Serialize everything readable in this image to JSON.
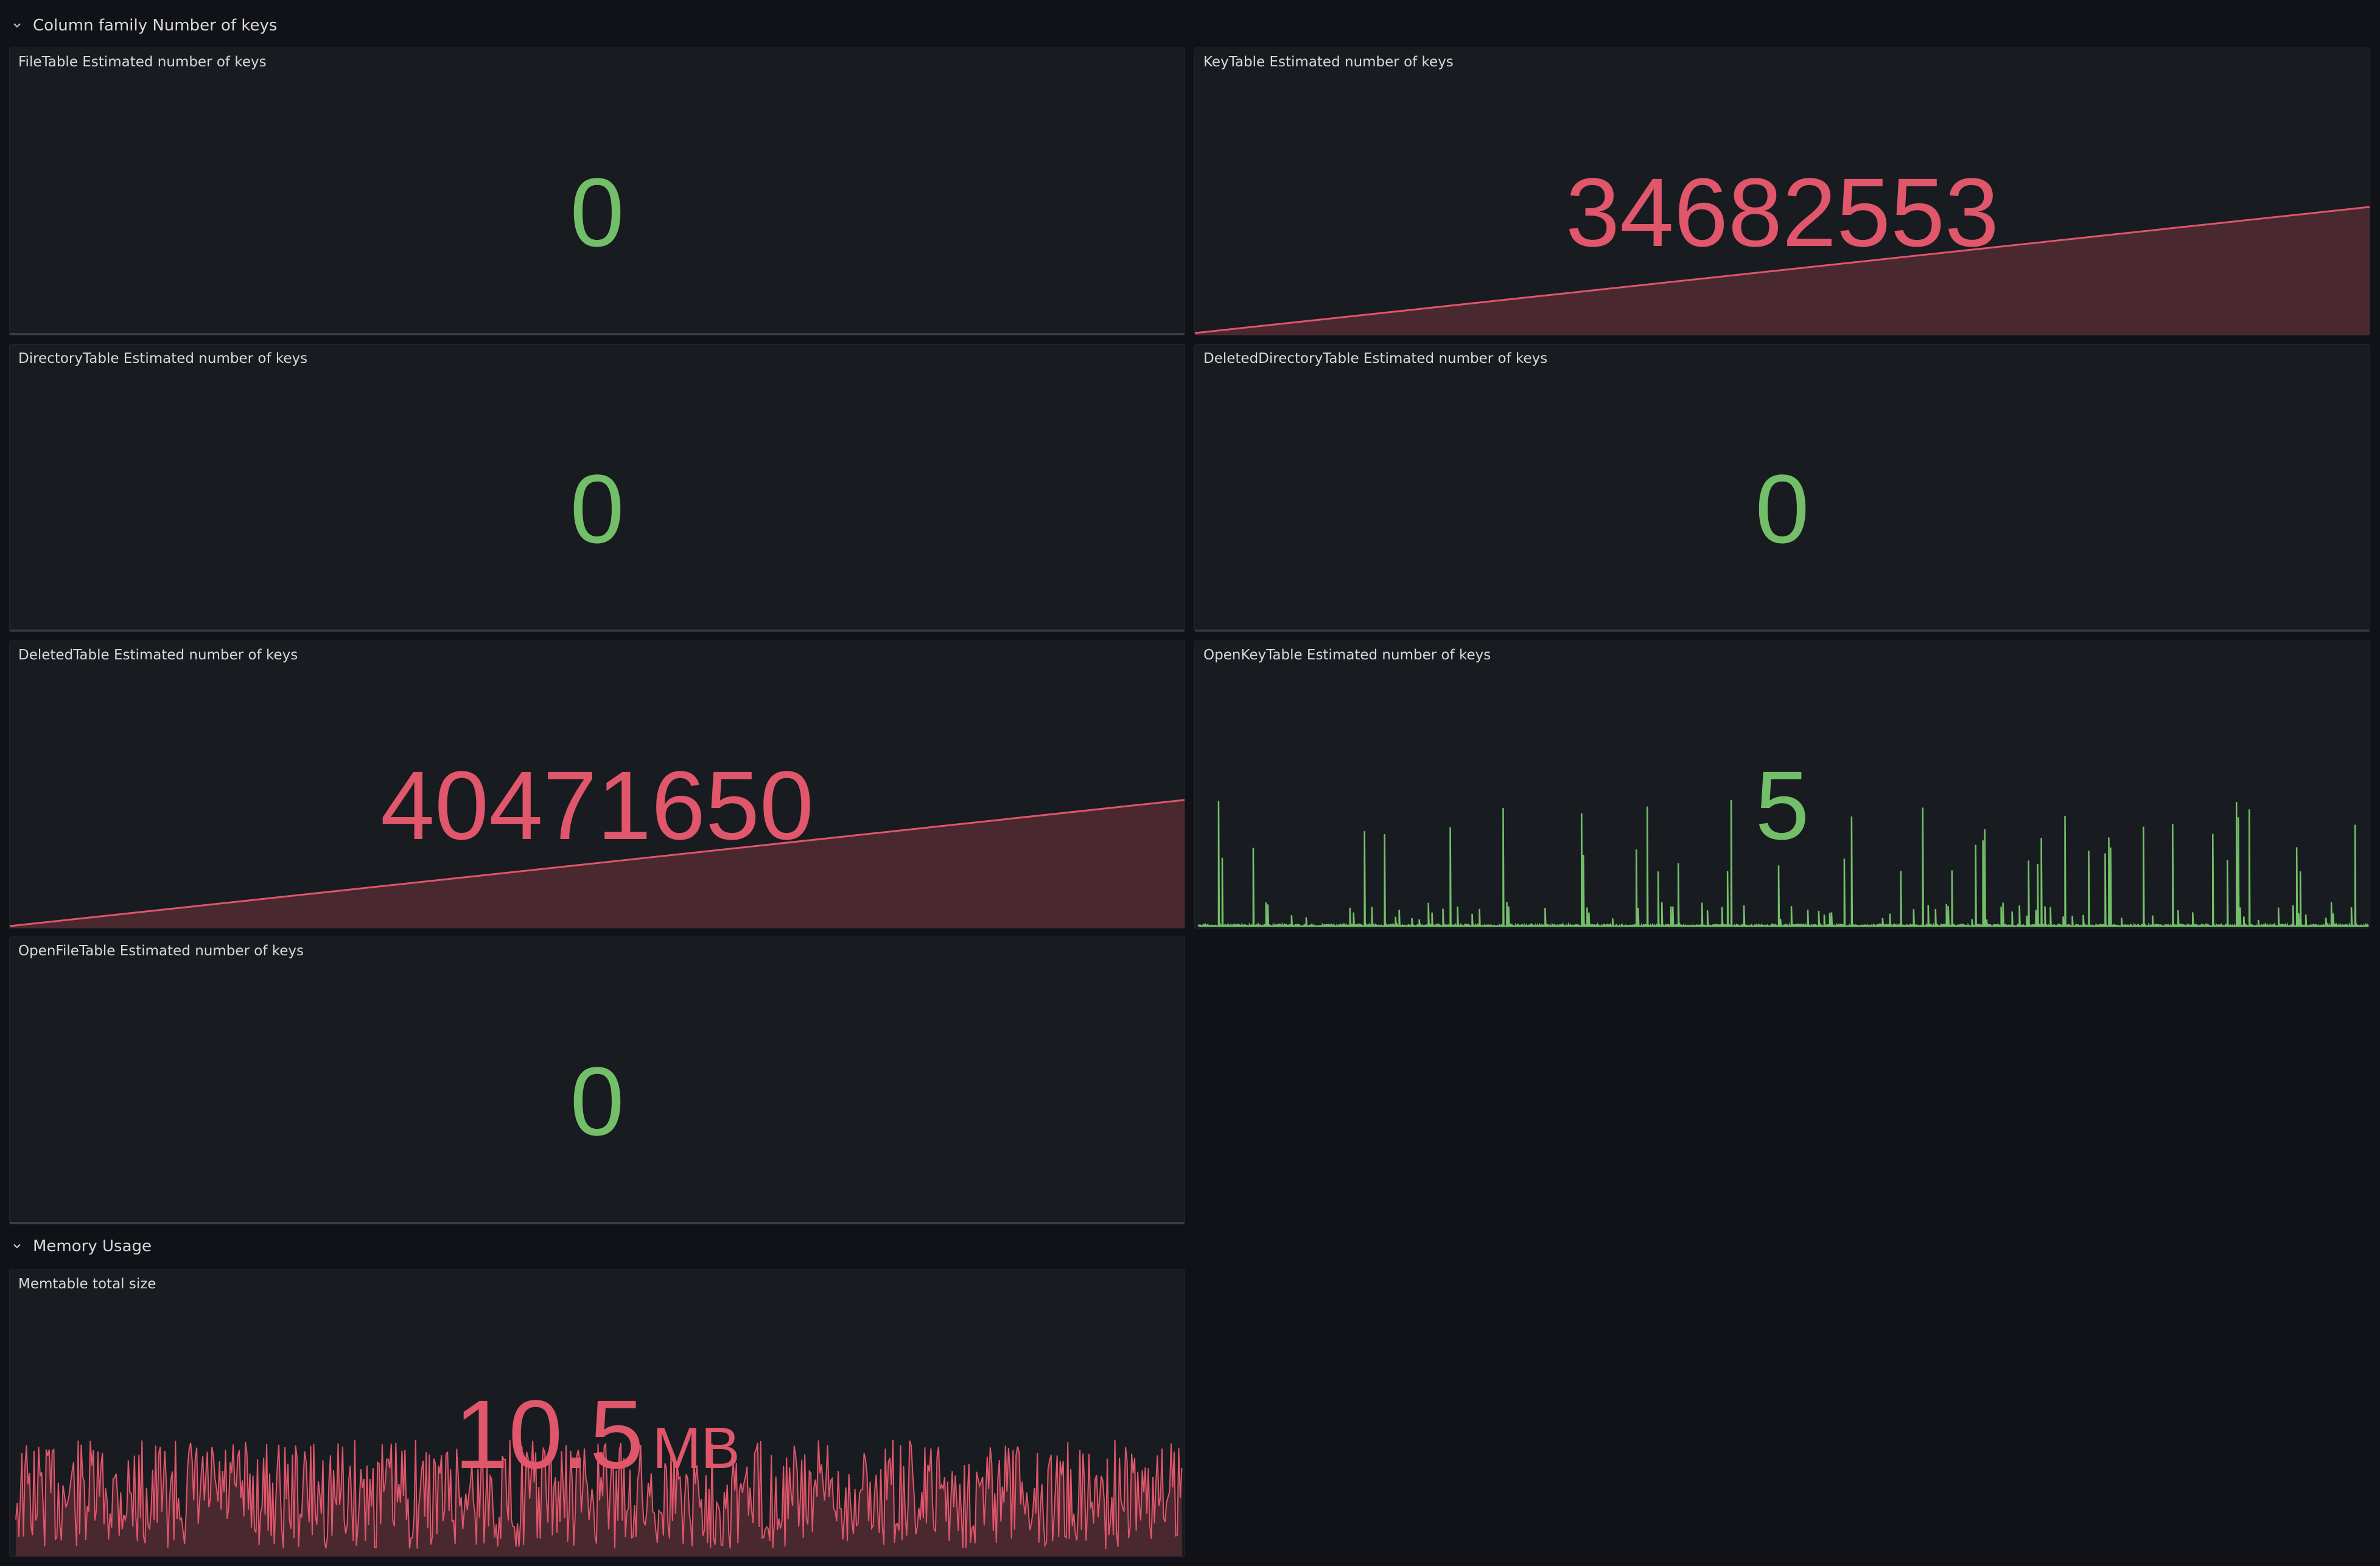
{
  "colors": {
    "green": "#73bf69",
    "red": "#e0566b",
    "red_fill": "#4a2830"
  },
  "rows": [
    {
      "label": "Column family Number of keys",
      "icon": "chevron-down-icon"
    },
    {
      "label": "Memory Usage",
      "icon": "chevron-down-icon"
    }
  ],
  "panels": [
    {
      "title": "FileTable Estimated number of keys",
      "value": "0",
      "status": "green",
      "sparkline": "flat"
    },
    {
      "title": "KeyTable Estimated number of keys",
      "value": "34682553",
      "status": "red",
      "sparkline": "ramp"
    },
    {
      "title": "DirectoryTable Estimated number of keys",
      "value": "0",
      "status": "green",
      "sparkline": "flat"
    },
    {
      "title": "DeletedDirectoryTable Estimated number of keys",
      "value": "0",
      "status": "green",
      "sparkline": "flat"
    },
    {
      "title": "DeletedTable Estimated number of keys",
      "value": "40471650",
      "status": "red",
      "sparkline": "ramp"
    },
    {
      "title": "OpenKeyTable Estimated number of keys",
      "value": "5",
      "status": "green",
      "sparkline": "spikes"
    },
    {
      "title": "OpenFileTable Estimated number of keys",
      "value": "0",
      "status": "green",
      "sparkline": "flat"
    },
    {
      "title": "Memtable total size",
      "value": "10.5",
      "unit": "MB",
      "status": "red",
      "sparkline": "noise"
    }
  ]
}
